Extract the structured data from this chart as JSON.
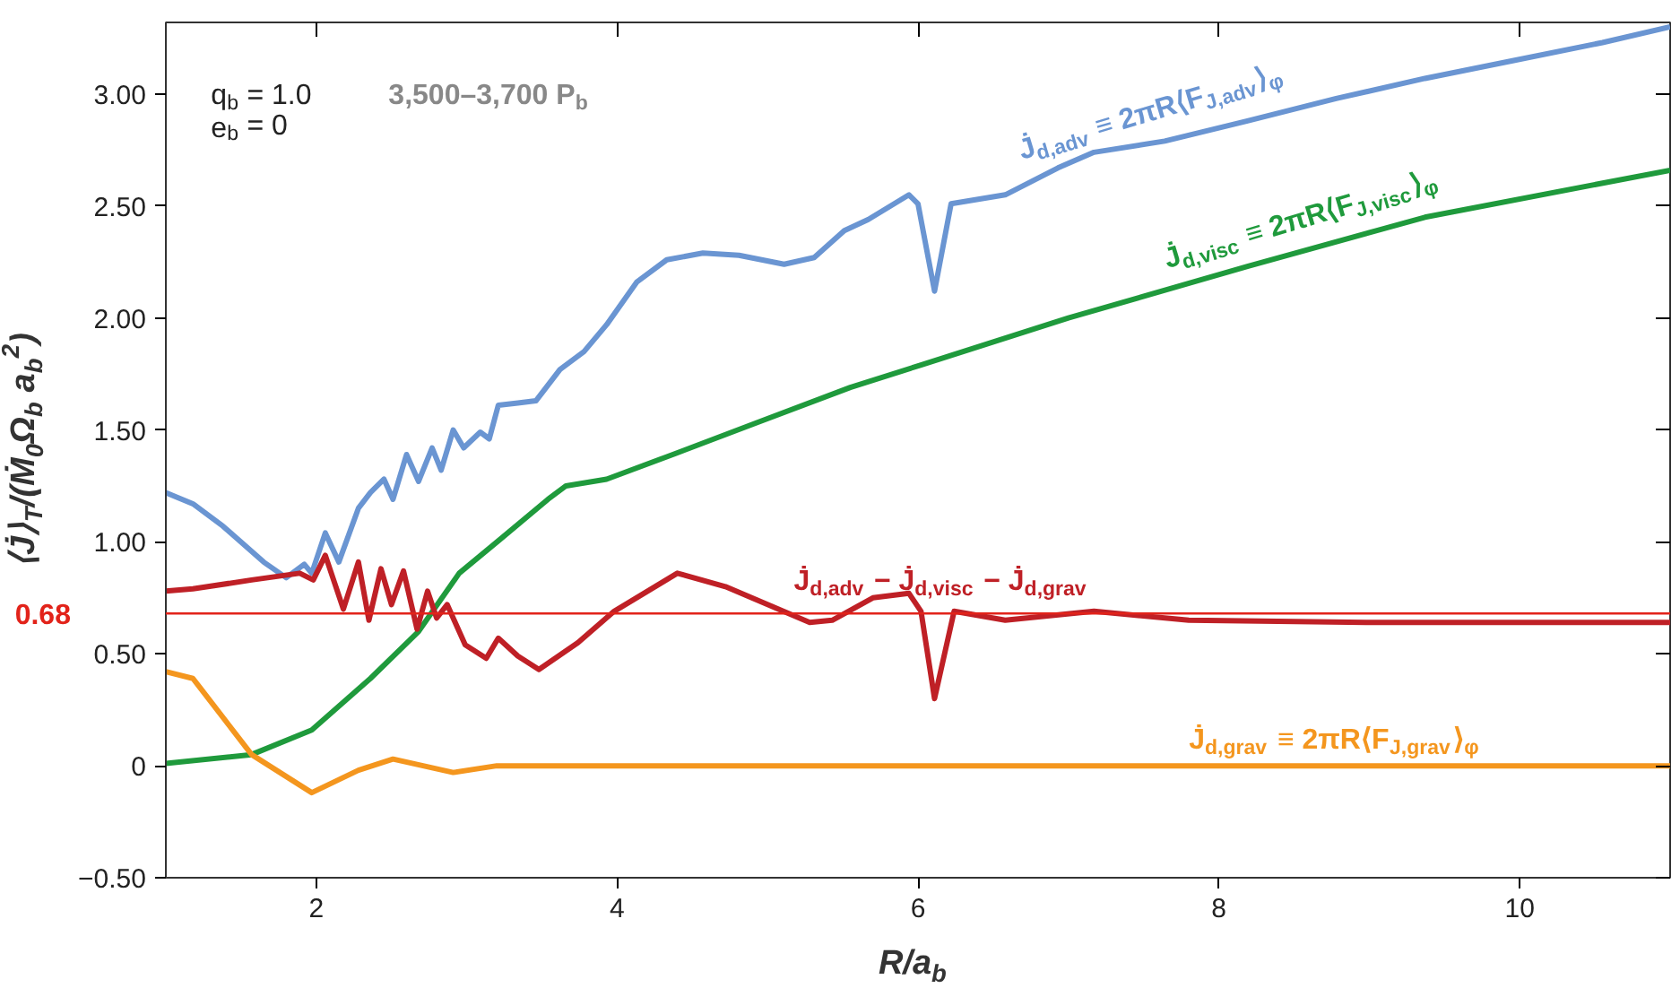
{
  "chart_data": {
    "type": "line",
    "xlabel": "R/a$_{b}$",
    "ylabel": "⟨J̇⟩$_{T}$/(Ṁ$_{0}$Ω$_{b}$ a$_{b}$$^{2}$)",
    "xlim": [
      1,
      11
    ],
    "ylim": [
      -0.5,
      3.32
    ],
    "xticks": [
      2,
      4,
      6,
      8,
      10
    ],
    "yticks": [
      {
        "value": -0.5,
        "label": "−0.50"
      },
      0,
      {
        "value": 0.5,
        "label": "0.50"
      },
      {
        "value": 1.0,
        "label": "1.00"
      },
      {
        "value": 1.5,
        "label": "1.50"
      },
      {
        "value": 2.0,
        "label": "2.00"
      },
      {
        "value": 2.5,
        "label": "2.50"
      },
      {
        "value": 3.0,
        "label": "3.00"
      }
    ],
    "grid": false,
    "legend": false,
    "marker": "none",
    "line_style": "solid",
    "annotations": [
      "q$_{b}$ = 1.0",
      "e$_{b}$ = 0",
      "3,500–3,700 P$_{b}$"
    ],
    "ref_lines": [
      {
        "axis": "y",
        "value": 0.68,
        "label": "0.68",
        "color": "#e2231a"
      }
    ],
    "series": [
      {
        "name": "J̇$_{d,adv}$ ≡ 2πR⟨F$_{J,adv}$⟩$_{φ}$",
        "color": "#6a95d2",
        "x": [
          1,
          1.18,
          1.38,
          1.65,
          1.8,
          1.92,
          1.97,
          2.06,
          2.15,
          2.28,
          2.36,
          2.45,
          2.51,
          2.6,
          2.68,
          2.77,
          2.83,
          2.91,
          2.98,
          3.09,
          3.15,
          3.21,
          3.34,
          3.46,
          3.62,
          3.78,
          3.93,
          4.13,
          4.33,
          4.57,
          4.81,
          5.11,
          5.31,
          5.51,
          5.67,
          5.94,
          6.0,
          6.11,
          6.22,
          6.58,
          6.93,
          7.17,
          7.64,
          8.19,
          8.78,
          9.37,
          9.96,
          10.55,
          11.0
        ],
        "values": [
          1.22,
          1.17,
          1.07,
          0.91,
          0.84,
          0.9,
          0.86,
          1.04,
          0.91,
          1.15,
          1.22,
          1.28,
          1.19,
          1.39,
          1.27,
          1.42,
          1.32,
          1.5,
          1.42,
          1.49,
          1.46,
          1.61,
          1.62,
          1.63,
          1.77,
          1.85,
          1.97,
          2.16,
          2.26,
          2.29,
          2.28,
          2.24,
          2.27,
          2.39,
          2.44,
          2.55,
          2.51,
          2.12,
          2.51,
          2.55,
          2.67,
          2.74,
          2.79,
          2.88,
          2.98,
          3.07,
          3.15,
          3.23,
          3.3
        ]
      },
      {
        "name": "J̇$_{d,visc}$ ≡ 2πR⟨F$_{J,visc}$⟩$_{φ}$",
        "color": "#1f9a3c",
        "x": [
          1,
          1.57,
          1.97,
          2.36,
          2.68,
          2.95,
          3.22,
          3.54,
          3.66,
          3.93,
          4.33,
          4.92,
          5.55,
          6.02,
          7.0,
          8.19,
          9.37,
          11.0
        ],
        "values": [
          0.01,
          0.05,
          0.16,
          0.39,
          0.6,
          0.86,
          1.01,
          1.19,
          1.25,
          1.28,
          1.38,
          1.53,
          1.69,
          1.79,
          2.0,
          2.23,
          2.45,
          2.66
        ]
      },
      {
        "name": "J̇$_{d,adv}$ − J̇$_{d,visc}$ − J̇$_{d,grav}$",
        "color": "#bf2026",
        "x": [
          1,
          1.18,
          1.57,
          1.89,
          1.98,
          2.06,
          2.18,
          2.28,
          2.35,
          2.43,
          2.5,
          2.58,
          2.67,
          2.74,
          2.8,
          2.87,
          2.99,
          3.13,
          3.21,
          3.34,
          3.48,
          3.74,
          3.98,
          4.4,
          4.72,
          5.28,
          5.43,
          5.7,
          5.94,
          6.02,
          6.11,
          6.24,
          6.58,
          7.17,
          7.8,
          8.98,
          11.0
        ],
        "values": [
          0.78,
          0.79,
          0.83,
          0.86,
          0.83,
          0.94,
          0.7,
          0.91,
          0.65,
          0.88,
          0.72,
          0.87,
          0.61,
          0.78,
          0.66,
          0.72,
          0.54,
          0.48,
          0.57,
          0.49,
          0.43,
          0.55,
          0.69,
          0.86,
          0.8,
          0.64,
          0.65,
          0.75,
          0.77,
          0.69,
          0.3,
          0.69,
          0.65,
          0.69,
          0.65,
          0.64,
          0.64
        ]
      },
      {
        "name": "J̇$_{d,grav}$ ≡ 2πR⟨F$_{J,grav}$⟩$_{φ}$",
        "color": "#f4961e",
        "x": [
          1,
          1.18,
          1.57,
          1.97,
          2.28,
          2.51,
          2.91,
          3.2,
          3.5,
          5.0,
          11.0
        ],
        "values": [
          0.42,
          0.39,
          0.05,
          -0.12,
          -0.02,
          0.03,
          -0.03,
          0.0,
          0.0,
          0.0,
          0.0
        ]
      }
    ]
  }
}
